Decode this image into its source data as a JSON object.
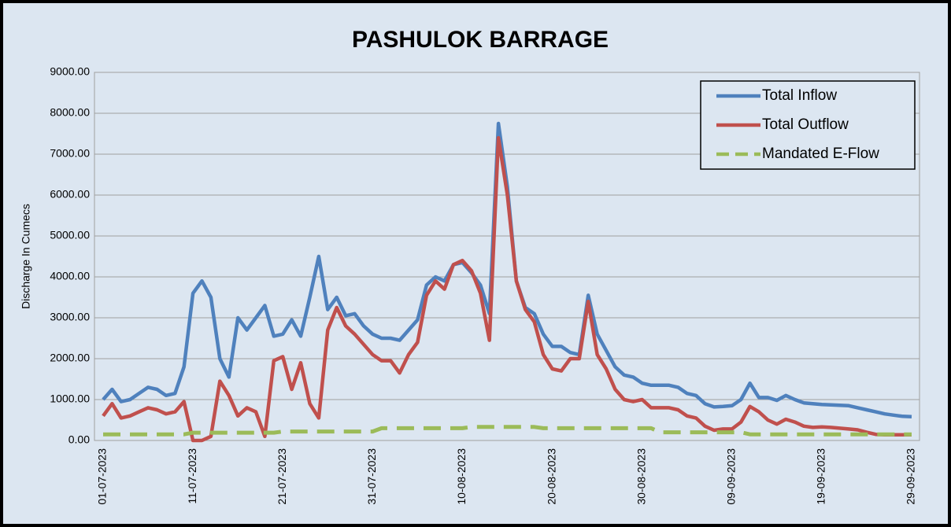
{
  "chart_data": {
    "type": "line",
    "title": "PASHULOK BARRAGE",
    "ylabel": "Discharge In Cumecs",
    "categories": [
      "01-07-2023",
      null,
      null,
      null,
      null,
      null,
      null,
      null,
      null,
      null,
      "11-07-2023",
      null,
      null,
      null,
      null,
      null,
      null,
      null,
      null,
      null,
      "21-07-2023",
      null,
      null,
      null,
      null,
      null,
      null,
      null,
      null,
      null,
      "31-07-2023",
      null,
      null,
      null,
      null,
      null,
      null,
      null,
      null,
      null,
      "10-08-2023",
      null,
      null,
      null,
      null,
      null,
      null,
      null,
      null,
      null,
      "20-08-2023",
      null,
      null,
      null,
      null,
      null,
      null,
      null,
      null,
      null,
      "30-08-2023",
      null,
      null,
      null,
      null,
      null,
      null,
      null,
      null,
      null,
      "09-09-2023",
      null,
      null,
      null,
      null,
      null,
      null,
      null,
      null,
      null,
      "19-09-2023",
      null,
      null,
      null,
      null,
      null,
      null,
      null,
      null,
      null,
      "29-09-2023"
    ],
    "series": [
      {
        "name": "Total Inflow",
        "color": "#4f81bd",
        "dashed": false,
        "values": [
          1000,
          1250,
          950,
          1000,
          1150,
          1300,
          1250,
          1100,
          1150,
          1800,
          3600,
          3900,
          3500,
          2000,
          1550,
          3000,
          2700,
          3000,
          3300,
          2550,
          2600,
          2950,
          2550,
          3500,
          4500,
          3200,
          3500,
          3050,
          3100,
          2800,
          2600,
          2500,
          2500,
          2450,
          2700,
          2950,
          3800,
          4000,
          3900,
          4300,
          4350,
          4100,
          3800,
          3100,
          7750,
          6200,
          3900,
          3250,
          3100,
          2600,
          2300,
          2300,
          2150,
          2100,
          3550,
          2600,
          2200,
          1800,
          1600,
          1550,
          1400,
          1350,
          1350,
          1350,
          1300,
          1150,
          1100,
          900,
          820,
          830,
          850,
          1000,
          1400,
          1050,
          1050,
          980,
          1100,
          1000,
          920,
          900,
          880,
          870,
          860,
          850,
          800,
          750,
          700,
          650,
          620,
          590,
          580
        ]
      },
      {
        "name": "Total Outflow",
        "color": "#c0504d",
        "dashed": false,
        "values": [
          600,
          900,
          550,
          600,
          700,
          800,
          750,
          650,
          700,
          950,
          0,
          0,
          100,
          1450,
          1100,
          600,
          800,
          700,
          100,
          1950,
          2050,
          1250,
          1900,
          900,
          550,
          2700,
          3250,
          2800,
          2600,
          2350,
          2100,
          1950,
          1950,
          1650,
          2100,
          2400,
          3550,
          3900,
          3700,
          4300,
          4400,
          4150,
          3600,
          2450,
          7400,
          6000,
          3900,
          3200,
          2900,
          2100,
          1750,
          1700,
          2000,
          2000,
          3400,
          2100,
          1750,
          1250,
          1000,
          950,
          1000,
          800,
          800,
          800,
          750,
          600,
          550,
          350,
          250,
          280,
          280,
          450,
          830,
          700,
          500,
          400,
          520,
          450,
          350,
          320,
          330,
          320,
          300,
          280,
          260,
          200,
          150,
          140,
          140,
          140,
          140
        ]
      },
      {
        "name": "Mandated E-Flow",
        "color": "#9bbb59",
        "dashed": true,
        "values": [
          150,
          150,
          150,
          150,
          150,
          150,
          150,
          150,
          150,
          150,
          190,
          190,
          190,
          190,
          190,
          190,
          190,
          190,
          190,
          190,
          220,
          220,
          220,
          220,
          220,
          220,
          220,
          220,
          220,
          220,
          220,
          300,
          300,
          300,
          300,
          300,
          300,
          300,
          300,
          300,
          300,
          330,
          330,
          330,
          330,
          330,
          330,
          330,
          330,
          300,
          300,
          300,
          300,
          300,
          300,
          300,
          300,
          300,
          300,
          300,
          300,
          300,
          200,
          200,
          200,
          200,
          200,
          200,
          200,
          200,
          200,
          200,
          150,
          150,
          150,
          150,
          150,
          150,
          150,
          150,
          150,
          150,
          150,
          150,
          150,
          150,
          150,
          150,
          150,
          150,
          150
        ]
      }
    ],
    "ylim": [
      0,
      9000
    ],
    "yticks": [
      {
        "value": 0,
        "label": "0.00"
      },
      {
        "value": 1000,
        "label": "1000.00"
      },
      {
        "value": 2000,
        "label": "2000.00"
      },
      {
        "value": 3000,
        "label": "3000.00"
      },
      {
        "value": 4000,
        "label": "4000.00"
      },
      {
        "value": 5000,
        "label": "5000.00"
      },
      {
        "value": 6000,
        "label": "6000.00"
      },
      {
        "value": 7000,
        "label": "7000.00"
      },
      {
        "value": 8000,
        "label": "8000.00"
      },
      {
        "value": 9000,
        "label": "9000.00"
      }
    ],
    "legend": "top-right"
  }
}
